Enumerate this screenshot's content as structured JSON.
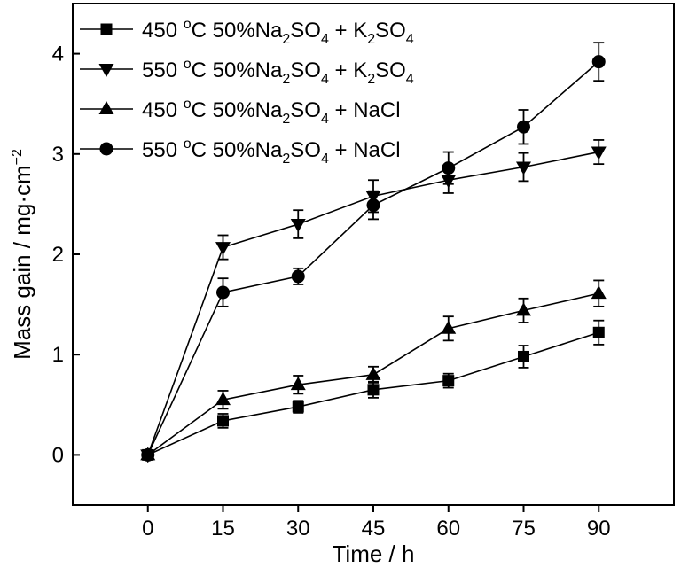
{
  "chart_data": {
    "type": "line",
    "x": [
      0,
      15,
      30,
      45,
      60,
      75,
      90
    ],
    "xlabel": "Time / h",
    "ylabel": "Mass gain / mg·cm",
    "ylabel_sup": "−2",
    "xlim": [
      -15,
      105
    ],
    "ylim": [
      -0.5,
      4.5
    ],
    "x_ticks": [
      0,
      15,
      30,
      45,
      60,
      75,
      90
    ],
    "y_ticks": [
      0,
      1,
      2,
      3,
      4
    ],
    "x_tick_labels": [
      "0",
      "15",
      "30",
      "45",
      "60",
      "75",
      "90"
    ],
    "y_tick_labels": [
      "0",
      "1",
      "2",
      "3",
      "4"
    ],
    "grid": false,
    "legend_position": "top-left",
    "series": [
      {
        "name": "450 oC 50%Na2SO4 + K2SO4",
        "label_parts": [
          [
            "450 ",
            ""
          ],
          [
            "o",
            "sup"
          ],
          [
            "C 50%Na",
            ""
          ],
          [
            "2",
            "sub"
          ],
          [
            "SO",
            ""
          ],
          [
            "4",
            "sub"
          ],
          [
            " + K",
            ""
          ],
          [
            "2",
            "sub"
          ],
          [
            "SO",
            ""
          ],
          [
            "4",
            "sub"
          ]
        ],
        "marker": "square",
        "values": [
          0,
          0.34,
          0.48,
          0.65,
          0.74,
          0.98,
          1.22
        ],
        "errors": [
          0,
          0.07,
          0.06,
          0.08,
          0.07,
          0.11,
          0.12
        ]
      },
      {
        "name": "550 oC 50%Na2SO4 + K2SO4",
        "label_parts": [
          [
            "550 ",
            ""
          ],
          [
            "o",
            "sup"
          ],
          [
            "C 50%Na",
            ""
          ],
          [
            "2",
            "sub"
          ],
          [
            "SO",
            ""
          ],
          [
            "4",
            "sub"
          ],
          [
            " + K",
            ""
          ],
          [
            "2",
            "sub"
          ],
          [
            "SO",
            ""
          ],
          [
            "4",
            "sub"
          ]
        ],
        "marker": "triangle-down",
        "values": [
          0,
          2.07,
          2.3,
          2.58,
          2.74,
          2.87,
          3.02
        ],
        "errors": [
          0,
          0.12,
          0.14,
          0.16,
          0.13,
          0.14,
          0.12
        ]
      },
      {
        "name": "450 oC 50%Na2SO4 + NaCl",
        "label_parts": [
          [
            "450 ",
            ""
          ],
          [
            "o",
            "sup"
          ],
          [
            "C 50%Na",
            ""
          ],
          [
            "2",
            "sub"
          ],
          [
            "SO",
            ""
          ],
          [
            "4",
            "sub"
          ],
          [
            " + NaCl",
            ""
          ]
        ],
        "marker": "triangle-up",
        "values": [
          0,
          0.55,
          0.7,
          0.8,
          1.26,
          1.44,
          1.61
        ],
        "errors": [
          0,
          0.09,
          0.09,
          0.08,
          0.12,
          0.12,
          0.13
        ]
      },
      {
        "name": "550 oC 50%Na2SO4 + NaCl",
        "label_parts": [
          [
            "550 ",
            ""
          ],
          [
            "o",
            "sup"
          ],
          [
            "C 50%Na",
            ""
          ],
          [
            "2",
            "sub"
          ],
          [
            "SO",
            ""
          ],
          [
            "4",
            "sub"
          ],
          [
            " + NaCl",
            ""
          ]
        ],
        "marker": "circle",
        "values": [
          0,
          1.62,
          1.78,
          2.49,
          2.86,
          3.27,
          3.92
        ],
        "errors": [
          0,
          0.14,
          0.08,
          0.14,
          0.16,
          0.17,
          0.19
        ]
      }
    ]
  }
}
